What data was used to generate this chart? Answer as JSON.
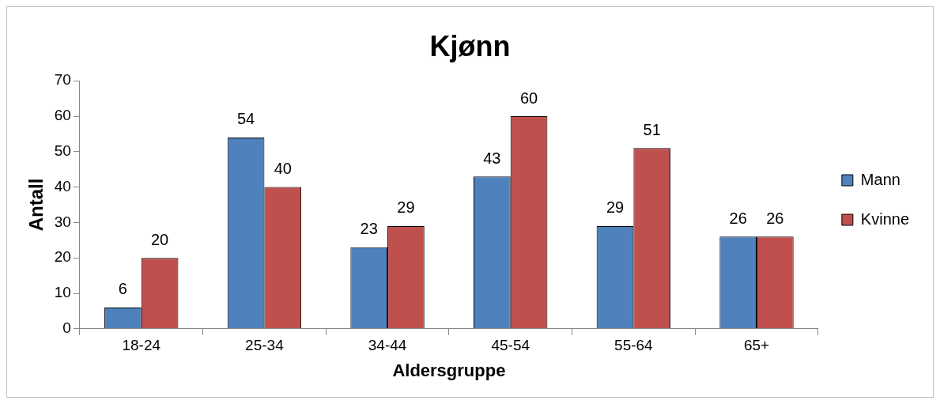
{
  "chart_data": {
    "type": "bar",
    "title": "Kjønn",
    "xlabel": "Aldersgruppe",
    "ylabel": "Antall",
    "categories": [
      "18-24",
      "25-34",
      "34-44",
      "45-54",
      "55-64",
      "65+"
    ],
    "series": [
      {
        "name": "Mann",
        "color": "#4f81bd",
        "values": [
          6,
          54,
          23,
          43,
          29,
          26
        ]
      },
      {
        "name": "Kvinne",
        "color": "#c0504d",
        "values": [
          20,
          40,
          29,
          60,
          51,
          26
        ]
      }
    ],
    "ylim": [
      0,
      70
    ],
    "yticks": [
      0,
      10,
      20,
      30,
      40,
      50,
      60,
      70
    ],
    "grid": false,
    "legend": "right",
    "data_labels": true
  }
}
